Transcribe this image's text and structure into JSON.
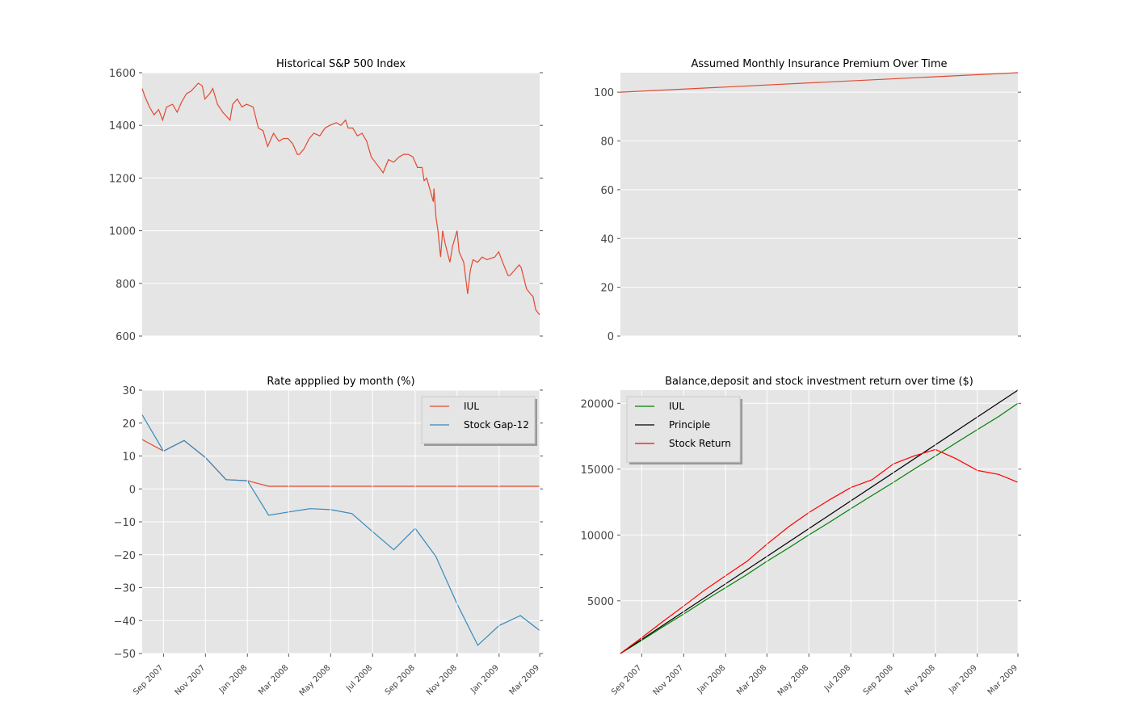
{
  "chart_data": [
    {
      "type": "line",
      "title": "Historical S&P 500 Index",
      "xlabel": "",
      "ylabel": "",
      "x_axis": "date",
      "xlim": [
        "2007-07-16",
        "2009-03-09"
      ],
      "ylim": [
        600,
        1600
      ],
      "yticks": [
        600,
        800,
        1000,
        1200,
        1400,
        1600
      ],
      "grid": true,
      "legend": "none",
      "colors": {
        "series": "#e24a33"
      },
      "series": [
        {
          "x": [
            "2007-07-16",
            "2007-07-20",
            "2007-07-27",
            "2007-08-03",
            "2007-08-10",
            "2007-08-16",
            "2007-08-22",
            "2007-08-31",
            "2007-09-07",
            "2007-09-14",
            "2007-09-21",
            "2007-09-28",
            "2007-10-09",
            "2007-10-15",
            "2007-10-19",
            "2007-10-26",
            "2007-10-31",
            "2007-11-07",
            "2007-11-15",
            "2007-11-26",
            "2007-11-30",
            "2007-12-07",
            "2007-12-14",
            "2007-12-21",
            "2007-12-31",
            "2008-01-08",
            "2008-01-15",
            "2008-01-22",
            "2008-01-31",
            "2008-02-08",
            "2008-02-15",
            "2008-02-22",
            "2008-02-29",
            "2008-03-07",
            "2008-03-10",
            "2008-03-17",
            "2008-03-25",
            "2008-04-01",
            "2008-04-10",
            "2008-04-18",
            "2008-04-25",
            "2008-05-05",
            "2008-05-12",
            "2008-05-19",
            "2008-05-23",
            "2008-05-30",
            "2008-06-06",
            "2008-06-13",
            "2008-06-20",
            "2008-06-27",
            "2008-07-03",
            "2008-07-15",
            "2008-07-23",
            "2008-07-31",
            "2008-08-08",
            "2008-08-15",
            "2008-08-22",
            "2008-08-29",
            "2008-09-05",
            "2008-09-12",
            "2008-09-15",
            "2008-09-19",
            "2008-09-29",
            "2008-09-30",
            "2008-10-03",
            "2008-10-06",
            "2008-10-10",
            "2008-10-13",
            "2008-10-17",
            "2008-10-24",
            "2008-10-28",
            "2008-11-04",
            "2008-11-07",
            "2008-11-14",
            "2008-11-20",
            "2008-11-24",
            "2008-11-28",
            "2008-12-05",
            "2008-12-12",
            "2008-12-19",
            "2008-12-31",
            "2009-01-06",
            "2009-01-12",
            "2009-01-20",
            "2009-01-23",
            "2009-01-30",
            "2009-02-06",
            "2009-02-09",
            "2009-02-17",
            "2009-02-23",
            "2009-02-27",
            "2009-03-03",
            "2009-03-09"
          ],
          "values": [
            1540,
            1510,
            1470,
            1440,
            1460,
            1420,
            1470,
            1480,
            1450,
            1490,
            1520,
            1530,
            1560,
            1550,
            1500,
            1520,
            1540,
            1480,
            1450,
            1420,
            1480,
            1500,
            1470,
            1480,
            1470,
            1390,
            1380,
            1320,
            1370,
            1340,
            1350,
            1350,
            1330,
            1290,
            1290,
            1310,
            1350,
            1370,
            1360,
            1390,
            1400,
            1410,
            1400,
            1420,
            1390,
            1390,
            1360,
            1370,
            1340,
            1280,
            1260,
            1220,
            1270,
            1260,
            1280,
            1290,
            1290,
            1280,
            1240,
            1240,
            1190,
            1200,
            1110,
            1160,
            1050,
            1000,
            900,
            1000,
            950,
            880,
            940,
            1000,
            920,
            880,
            760,
            850,
            890,
            880,
            900,
            890,
            900,
            920,
            880,
            830,
            830,
            850,
            870,
            860,
            780,
            760,
            750,
            700,
            680
          ]
        }
      ]
    },
    {
      "type": "line",
      "title": "Assumed Monthly Insurance Premium Over Time",
      "xlabel": "",
      "ylabel": "",
      "x_axis": "month",
      "ylim": [
        0,
        108
      ],
      "yticks": [
        0,
        20,
        40,
        60,
        80,
        100
      ],
      "grid": true,
      "legend": "none",
      "colors": {
        "series": "#e24a33"
      },
      "series": [
        {
          "x": [
            "2007-08",
            "2009-03"
          ],
          "values": [
            100,
            108
          ]
        }
      ]
    },
    {
      "type": "line",
      "title": "Rate appplied by month (%)",
      "xlabel": "",
      "ylabel": "",
      "x_axis": "month",
      "ylim": [
        -50,
        30
      ],
      "yticks": [
        -50,
        -40,
        -30,
        -20,
        -10,
        0,
        10,
        20,
        30
      ],
      "xticks": [
        "Sep 2007",
        "Nov 2007",
        "Jan 2008",
        "Mar 2008",
        "May 2008",
        "Jul 2008",
        "Sep 2008",
        "Nov 2008",
        "Jan 2009",
        "Mar 2009"
      ],
      "grid": true,
      "legend": "top-right",
      "colors": {
        "IUL": "#e24a33",
        "Stock Gap-12": "#348abd"
      },
      "series": [
        {
          "name": "IUL",
          "x": [
            "2007-08",
            "2007-09",
            "2007-10",
            "2007-11",
            "2007-12",
            "2008-01",
            "2008-02",
            "2008-03",
            "2008-04",
            "2008-05",
            "2008-06",
            "2008-07",
            "2008-08",
            "2008-09",
            "2008-10",
            "2008-11",
            "2008-12",
            "2009-01",
            "2009-02",
            "2009-03"
          ],
          "values": [
            15,
            11.5,
            14.7,
            9.5,
            2.8,
            2.5,
            0.8,
            0.8,
            0.8,
            0.8,
            0.8,
            0.8,
            0.8,
            0.8,
            0.8,
            0.8,
            0.8,
            0.8,
            0.8,
            0.8
          ]
        },
        {
          "name": "Stock Gap-12",
          "x": [
            "2007-08",
            "2007-09",
            "2007-10",
            "2007-11",
            "2007-12",
            "2008-01",
            "2008-02",
            "2008-03",
            "2008-04",
            "2008-05",
            "2008-06",
            "2008-07",
            "2008-08",
            "2008-09",
            "2008-10",
            "2008-11",
            "2008-12",
            "2009-01",
            "2009-02",
            "2009-03"
          ],
          "values": [
            22.5,
            11.5,
            14.7,
            9.5,
            2.8,
            2.5,
            -8,
            -7,
            -6,
            -6.3,
            -7.5,
            -13,
            -18.5,
            -12,
            -20.5,
            -35,
            -47.5,
            -41.5,
            -38.5,
            -43
          ]
        }
      ]
    },
    {
      "type": "line",
      "title": "Balance,deposit and stock investment return over time ($)",
      "xlabel": "",
      "ylabel": "",
      "x_axis": "month",
      "ylim": [
        1000,
        21000
      ],
      "yticks": [
        5000,
        10000,
        15000,
        20000
      ],
      "xticks": [
        "Sep 2007",
        "Nov 2007",
        "Jan 2008",
        "Mar 2008",
        "May 2008",
        "Jul 2008",
        "Sep 2008",
        "Nov 2008",
        "Jan 2009",
        "Mar 2009"
      ],
      "grid": true,
      "legend": "top-left",
      "colors": {
        "IUL": "#008000",
        "Principle": "#000000",
        "Stock Return": "#ff0000"
      },
      "series": [
        {
          "name": "IUL",
          "x": [
            "2007-08",
            "2007-09",
            "2007-10",
            "2007-11",
            "2007-12",
            "2008-01",
            "2008-02",
            "2008-03",
            "2008-04",
            "2008-05",
            "2008-06",
            "2008-07",
            "2008-08",
            "2008-09",
            "2008-10",
            "2008-11",
            "2008-12",
            "2009-01",
            "2009-02",
            "2009-03"
          ],
          "values": [
            1000,
            2000,
            3000,
            4000,
            5000,
            6000,
            7000,
            8000,
            9000,
            10000,
            11000,
            12000,
            13000,
            14000,
            15000,
            16000,
            17000,
            18000,
            19000,
            20000
          ]
        },
        {
          "name": "Principle",
          "x": [
            "2007-08",
            "2009-03"
          ],
          "values": [
            1000,
            21000
          ]
        },
        {
          "name": "Stock Return",
          "x": [
            "2007-08",
            "2007-09",
            "2007-10",
            "2007-11",
            "2007-12",
            "2008-01",
            "2008-02",
            "2008-03",
            "2008-04",
            "2008-05",
            "2008-06",
            "2008-07",
            "2008-08",
            "2008-09",
            "2008-10",
            "2008-11",
            "2008-12",
            "2009-01",
            "2009-02",
            "2009-03"
          ],
          "values": [
            1000,
            2200,
            3400,
            4600,
            5800,
            6900,
            8000,
            9300,
            10600,
            11700,
            12700,
            13600,
            14200,
            15400,
            16000,
            16500,
            15800,
            14900,
            14600,
            14000
          ]
        }
      ]
    }
  ]
}
